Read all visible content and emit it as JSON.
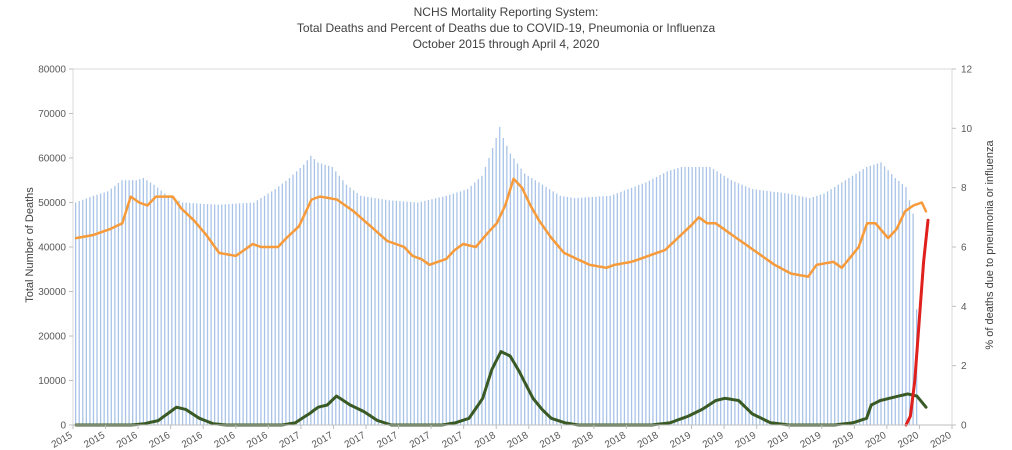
{
  "chart_data": {
    "type": "bar",
    "title": "NCHS Mortality Reporting System:",
    "subtitle": "Total Deaths and Percent of Deaths due to  COVID-19, Pneumonia or Influenza",
    "subtitle2": "October 2015 through April 4, 2020",
    "ylabel": "Total Number of Deaths",
    "y2label": "% of deaths due to pneumonia or influenza",
    "ylim": [
      0,
      80000
    ],
    "y2lim": [
      0,
      12
    ],
    "yticks": [
      "0",
      "10000",
      "20000",
      "30000",
      "40000",
      "50000",
      "60000",
      "70000",
      "80000"
    ],
    "y2ticks": [
      "0",
      "2",
      "4",
      "6",
      "8",
      "10",
      "12"
    ],
    "xticks": [
      "2015",
      "2015",
      "2016",
      "2016",
      "2016",
      "2016",
      "2016",
      "2017",
      "2017",
      "2017",
      "2017",
      "2017",
      "2017",
      "2018",
      "2018",
      "2018",
      "2018",
      "2018",
      "2018",
      "2019",
      "2019",
      "2019",
      "2019",
      "2019",
      "2019",
      "2020",
      "2020",
      "2020"
    ],
    "bar_color": "#a9c4e8",
    "series_colors": {
      "pct_pi": "#f79a3a",
      "influenza_deaths": "#3a5a25",
      "covid_pct": "#e0201c"
    },
    "bar_anchors": [
      [
        0,
        50000
      ],
      [
        5,
        51500
      ],
      [
        9,
        52500
      ],
      [
        13,
        55000
      ],
      [
        17,
        55000
      ],
      [
        19,
        55500
      ],
      [
        22,
        54000
      ],
      [
        25,
        52000
      ],
      [
        30,
        50000
      ],
      [
        40,
        49500
      ],
      [
        50,
        50000
      ],
      [
        56,
        53000
      ],
      [
        60,
        55500
      ],
      [
        64,
        58500
      ],
      [
        66,
        60500
      ],
      [
        68,
        59000
      ],
      [
        72,
        58000
      ],
      [
        76,
        54000
      ],
      [
        80,
        51500
      ],
      [
        88,
        50500
      ],
      [
        96,
        50000
      ],
      [
        104,
        51500
      ],
      [
        110,
        53000
      ],
      [
        114,
        56000
      ],
      [
        116,
        60000
      ],
      [
        118,
        64500
      ],
      [
        119,
        67000
      ],
      [
        120,
        64500
      ],
      [
        122,
        61000
      ],
      [
        126,
        56500
      ],
      [
        130,
        54500
      ],
      [
        136,
        51500
      ],
      [
        140,
        51000
      ],
      [
        150,
        51500
      ],
      [
        160,
        54500
      ],
      [
        166,
        57000
      ],
      [
        170,
        58000
      ],
      [
        178,
        58000
      ],
      [
        184,
        55000
      ],
      [
        190,
        53000
      ],
      [
        200,
        52000
      ],
      [
        206,
        51000
      ],
      [
        210,
        52000
      ],
      [
        216,
        55000
      ],
      [
        222,
        58000
      ],
      [
        226,
        59000
      ],
      [
        230,
        55500
      ],
      [
        233,
        53500
      ],
      [
        235,
        47500
      ],
      [
        236,
        26000
      ]
    ],
    "pct_anchors": [
      [
        0,
        6.3
      ],
      [
        4,
        6.4
      ],
      [
        8,
        6.6
      ],
      [
        11,
        6.8
      ],
      [
        13,
        7.7
      ],
      [
        15,
        7.5
      ],
      [
        17,
        7.4
      ],
      [
        19,
        7.7
      ],
      [
        23,
        7.7
      ],
      [
        25,
        7.3
      ],
      [
        28,
        6.9
      ],
      [
        31,
        6.4
      ],
      [
        34,
        5.8
      ],
      [
        38,
        5.7
      ],
      [
        40,
        5.9
      ],
      [
        42,
        6.1
      ],
      [
        44,
        6.0
      ],
      [
        48,
        6.0
      ],
      [
        50,
        6.3
      ],
      [
        53,
        6.7
      ],
      [
        56,
        7.6
      ],
      [
        58,
        7.7
      ],
      [
        62,
        7.6
      ],
      [
        66,
        7.2
      ],
      [
        70,
        6.7
      ],
      [
        74,
        6.2
      ],
      [
        78,
        6.0
      ],
      [
        80,
        5.7
      ],
      [
        82,
        5.6
      ],
      [
        84,
        5.4
      ],
      [
        86,
        5.5
      ],
      [
        88,
        5.6
      ],
      [
        90,
        5.9
      ],
      [
        92,
        6.1
      ],
      [
        95,
        6.0
      ],
      [
        98,
        6.5
      ],
      [
        100,
        6.8
      ],
      [
        102,
        7.4
      ],
      [
        104,
        8.3
      ],
      [
        106,
        8.0
      ],
      [
        108,
        7.4
      ],
      [
        110,
        6.9
      ],
      [
        113,
        6.3
      ],
      [
        116,
        5.8
      ],
      [
        119,
        5.6
      ],
      [
        122,
        5.4
      ],
      [
        126,
        5.3
      ],
      [
        128,
        5.4
      ],
      [
        132,
        5.5
      ],
      [
        136,
        5.7
      ],
      [
        140,
        5.9
      ],
      [
        143,
        6.3
      ],
      [
        146,
        6.7
      ],
      [
        148,
        7.0
      ],
      [
        150,
        6.8
      ],
      [
        152,
        6.8
      ],
      [
        154,
        6.6
      ],
      [
        156,
        6.4
      ],
      [
        159,
        6.1
      ],
      [
        162,
        5.8
      ],
      [
        166,
        5.4
      ],
      [
        170,
        5.1
      ],
      [
        174,
        5.0
      ],
      [
        176,
        5.4
      ],
      [
        180,
        5.5
      ],
      [
        182,
        5.3
      ],
      [
        186,
        6.0
      ],
      [
        188,
        6.8
      ],
      [
        190,
        6.8
      ],
      [
        193,
        6.3
      ],
      [
        195,
        6.6
      ],
      [
        197,
        7.2
      ],
      [
        199,
        7.4
      ],
      [
        201,
        7.5
      ],
      [
        202,
        7.2
      ]
    ],
    "flu_anchors": [
      [
        0,
        0
      ],
      [
        12,
        0
      ],
      [
        15,
        300
      ],
      [
        18,
        1000
      ],
      [
        20,
        2500
      ],
      [
        22,
        4000
      ],
      [
        24,
        3500
      ],
      [
        27,
        1500
      ],
      [
        30,
        300
      ],
      [
        33,
        0
      ],
      [
        45,
        0
      ],
      [
        48,
        500
      ],
      [
        51,
        2500
      ],
      [
        53,
        4000
      ],
      [
        55,
        4500
      ],
      [
        57,
        6500
      ],
      [
        60,
        4500
      ],
      [
        63,
        3000
      ],
      [
        66,
        1000
      ],
      [
        69,
        0
      ],
      [
        80,
        0
      ],
      [
        83,
        500
      ],
      [
        86,
        1500
      ],
      [
        89,
        6000
      ],
      [
        91,
        12500
      ],
      [
        93,
        16500
      ],
      [
        95,
        15500
      ],
      [
        97,
        12000
      ],
      [
        100,
        6000
      ],
      [
        102,
        3500
      ],
      [
        104,
        1500
      ],
      [
        107,
        500
      ],
      [
        110,
        0
      ],
      [
        126,
        0
      ],
      [
        130,
        500
      ],
      [
        134,
        2000
      ],
      [
        137,
        3500
      ],
      [
        140,
        5500
      ],
      [
        142,
        6000
      ],
      [
        145,
        5500
      ],
      [
        148,
        2500
      ],
      [
        152,
        500
      ],
      [
        156,
        0
      ],
      [
        166,
        0
      ],
      [
        170,
        500
      ],
      [
        173,
        1500
      ],
      [
        174,
        4500
      ],
      [
        176,
        5500
      ],
      [
        178,
        6000
      ],
      [
        180,
        6500
      ],
      [
        182,
        7000
      ],
      [
        184,
        6500
      ],
      [
        186,
        4000
      ]
    ],
    "covid_anchors": [
      [
        0,
        0.0
      ],
      [
        1,
        0.3
      ],
      [
        2,
        1.5
      ],
      [
        3,
        3.5
      ],
      [
        4,
        5.5
      ],
      [
        5,
        6.9
      ]
    ]
  }
}
